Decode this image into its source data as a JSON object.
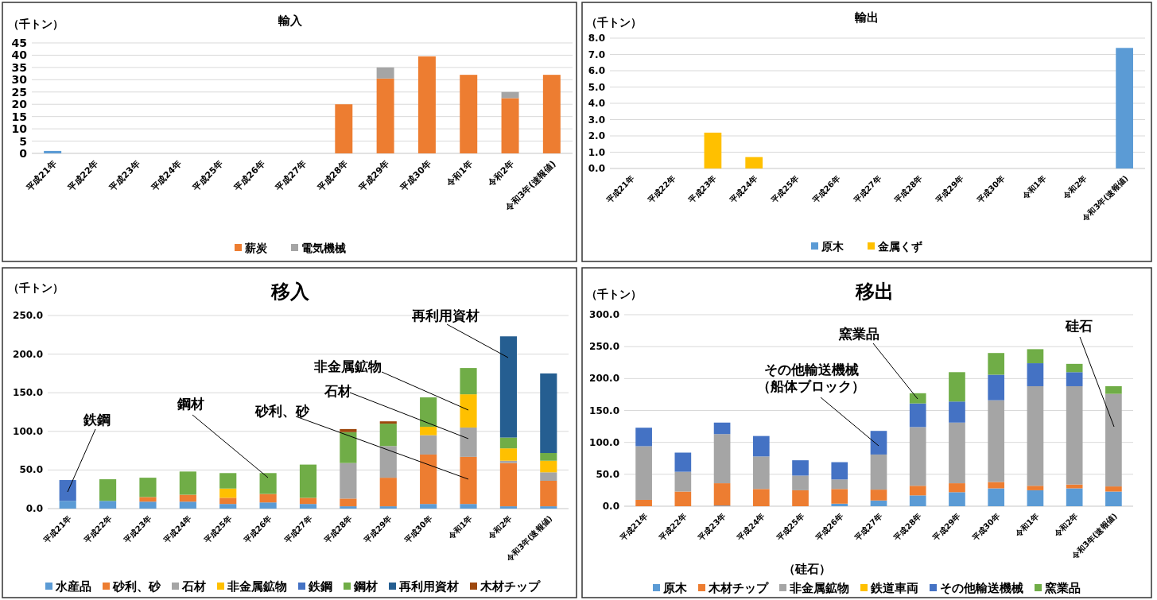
{
  "chart_data": [
    {
      "type": "bar",
      "stacked": true,
      "title": "輸入",
      "ylabel": "（千トン）",
      "categories": [
        "平成21年",
        "平成22年",
        "平成23年",
        "平成24年",
        "平成25年",
        "平成26年",
        "平成27年",
        "平成28年",
        "平成29年",
        "平成30年",
        "令和1年",
        "令和2年",
        "令和3年(速報値)"
      ],
      "ylim": [
        0,
        45
      ],
      "yticks": [
        0,
        5,
        10,
        15,
        20,
        25,
        30,
        35,
        40,
        45
      ],
      "grid": "y",
      "legend": "bottom",
      "series": [
        {
          "color": "#5b9bd5",
          "values": [
            1,
            null,
            null,
            null,
            null,
            null,
            null,
            null,
            null,
            null,
            null,
            null,
            null
          ]
        },
        {
          "name": "薪炭",
          "color": "#ed7d31",
          "values": [
            null,
            null,
            null,
            null,
            null,
            null,
            null,
            20,
            30.5,
            39.5,
            32,
            22.5,
            32
          ]
        },
        {
          "name": "電気機械",
          "color": "#a5a5a5",
          "values": [
            null,
            null,
            null,
            null,
            null,
            null,
            null,
            null,
            4.5,
            null,
            null,
            2.5,
            null
          ]
        }
      ]
    },
    {
      "type": "bar",
      "stacked": true,
      "title": "輸出",
      "ylabel": "（千トン）",
      "categories": [
        "平成21年",
        "平成22年",
        "平成23年",
        "平成24年",
        "平成25年",
        "平成26年",
        "平成27年",
        "平成28年",
        "平成29年",
        "平成30年",
        "令和1年",
        "令和2年",
        "令和3年(速報値)"
      ],
      "ylim": [
        0,
        8
      ],
      "yticks": [
        {
          "value": 0,
          "label": "0.0"
        },
        {
          "value": 1,
          "label": "1.0"
        },
        {
          "value": 2,
          "label": "2.0"
        },
        {
          "value": 3,
          "label": "3.0"
        },
        {
          "value": 4,
          "label": "4.0"
        },
        {
          "value": 5,
          "label": "5.0"
        },
        {
          "value": 6,
          "label": "6.0"
        },
        {
          "value": 7,
          "label": "7.0"
        },
        {
          "value": 8,
          "label": "8.0"
        }
      ],
      "grid": "y",
      "legend": "bottom",
      "series": [
        {
          "name": "原木",
          "color": "#5b9bd5",
          "values": [
            null,
            null,
            null,
            null,
            null,
            null,
            null,
            null,
            null,
            null,
            null,
            null,
            7.4
          ]
        },
        {
          "name": "金属くず",
          "color": "#ffc000",
          "values": [
            null,
            null,
            2.2,
            0.7,
            null,
            null,
            null,
            null,
            null,
            null,
            null,
            null,
            null
          ]
        }
      ]
    },
    {
      "type": "bar",
      "stacked": true,
      "title": "移入",
      "ylabel": "（千トン）",
      "categories": [
        "平成21年",
        "平成22年",
        "平成23年",
        "平成24年",
        "平成25年",
        "平成26年",
        "平成27年",
        "平成28年",
        "平成29年",
        "平成30年",
        "令和1年",
        "令和2年",
        "令和3年(速報値)"
      ],
      "ylim": [
        0,
        250
      ],
      "yticks": [
        {
          "value": 0,
          "label": "0.0"
        },
        {
          "value": 50,
          "label": "50.0"
        },
        {
          "value": 100,
          "label": "100.0"
        },
        {
          "value": 150,
          "label": "150.0"
        },
        {
          "value": 200,
          "label": "200.0"
        },
        {
          "value": 250,
          "label": "250.0"
        }
      ],
      "grid": "y",
      "legend": "bottom",
      "series": [
        {
          "name": "水産品",
          "color": "#5b9bd5",
          "values": [
            10,
            10,
            9,
            9,
            6,
            8,
            6,
            3,
            3,
            6,
            6,
            3,
            3
          ]
        },
        {
          "name": "砂利、砂",
          "color": "#ed7d31",
          "values": [
            null,
            null,
            6,
            9,
            8,
            11,
            8,
            10,
            37,
            64,
            61,
            56,
            33
          ]
        },
        {
          "name": "石材",
          "color": "#a5a5a5",
          "values": [
            null,
            null,
            null,
            null,
            null,
            null,
            null,
            46,
            41,
            25,
            38,
            3,
            11
          ]
        },
        {
          "name": "非金属鉱物",
          "color": "#ffc000",
          "values": [
            null,
            null,
            null,
            null,
            12,
            null,
            null,
            null,
            null,
            11,
            43,
            16,
            15
          ]
        },
        {
          "name": "鉄鋼",
          "color": "#4472c4",
          "values": [
            27,
            null,
            null,
            null,
            null,
            null,
            null,
            null,
            null,
            null,
            null,
            null,
            null
          ]
        },
        {
          "name": "鋼材",
          "color": "#70ad47",
          "values": [
            null,
            28,
            25,
            30,
            20,
            27,
            43,
            40,
            29,
            38,
            34,
            14,
            10
          ]
        },
        {
          "name": "再利用資材",
          "color": "#255e91",
          "values": [
            null,
            null,
            null,
            null,
            null,
            null,
            null,
            null,
            null,
            null,
            null,
            131,
            103
          ]
        },
        {
          "name": "木材チップ",
          "color": "#9e480e",
          "values": [
            null,
            null,
            null,
            null,
            null,
            null,
            null,
            4,
            3,
            null,
            null,
            null,
            null
          ]
        }
      ],
      "annotations": [
        "鉄鋼",
        "鋼材",
        "砂利、砂",
        "石材",
        "非金属鉱物",
        "再利用資材"
      ]
    },
    {
      "type": "bar",
      "stacked": true,
      "title": "移出",
      "ylabel": "（千トン）",
      "categories": [
        "平成21年",
        "平成22年",
        "平成23年",
        "平成24年",
        "平成25年",
        "平成26年",
        "平成27年",
        "平成28年",
        "平成29年",
        "平成30年",
        "令和1年",
        "令和2年",
        "令和3年(速報値)"
      ],
      "ylim": [
        0,
        300
      ],
      "yticks": [
        {
          "value": 0,
          "label": "0.0"
        },
        {
          "value": 50,
          "label": "50.0"
        },
        {
          "value": 100,
          "label": "100.0"
        },
        {
          "value": 150,
          "label": "150.0"
        },
        {
          "value": 200,
          "label": "200.0"
        },
        {
          "value": 250,
          "label": "250.0"
        },
        {
          "value": 300,
          "label": "300.0"
        }
      ],
      "grid": "y",
      "legend": "bottom",
      "series": [
        {
          "name": "原木",
          "color": "#5b9bd5",
          "values": [
            null,
            null,
            1,
            null,
            null,
            4,
            9,
            17,
            22,
            28,
            25,
            28,
            23
          ]
        },
        {
          "name": "木材チップ",
          "color": "#ed7d31",
          "values": [
            10,
            23,
            35,
            27,
            25,
            23,
            17,
            15,
            14,
            10,
            7,
            6,
            8
          ]
        },
        {
          "name": "非金属鉱物",
          "color": "#a5a5a5",
          "values": [
            84,
            31,
            77,
            51,
            23,
            15,
            55,
            92,
            95,
            128,
            156,
            154,
            145
          ]
        },
        {
          "name": "鉄道車両",
          "color": "#ffc000",
          "values": [
            null,
            null,
            null,
            null,
            null,
            null,
            null,
            null,
            null,
            null,
            null,
            null,
            null
          ]
        },
        {
          "name": "その他輸送機械",
          "color": "#4472c4",
          "values": [
            29,
            30,
            18,
            32,
            24,
            27,
            37,
            37,
            33,
            40,
            36,
            22,
            null
          ]
        },
        {
          "name": "窯業品",
          "color": "#70ad47",
          "values": [
            null,
            null,
            null,
            null,
            null,
            null,
            null,
            16,
            46,
            34,
            22,
            13,
            12
          ]
        }
      ],
      "annotations": [
        "窯業品",
        "その他輸送機械",
        "（船体ブロック）",
        "硅石",
        "（硅石）"
      ]
    }
  ]
}
